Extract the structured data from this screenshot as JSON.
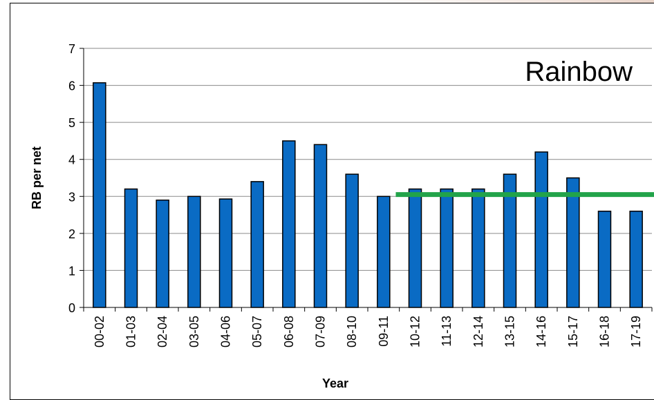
{
  "chart_data": {
    "type": "bar",
    "title": "Rainbow",
    "xlabel": "Year",
    "ylabel": "RB per net",
    "categories": [
      "00-02",
      "01-03",
      "02-04",
      "03-05",
      "04-06",
      "05-07",
      "06-08",
      "07-09",
      "08-10",
      "09-11",
      "10-12",
      "11-13",
      "12-14",
      "13-15",
      "14-16",
      "15-17",
      "16-18",
      "17-19"
    ],
    "values": [
      6.07,
      3.2,
      2.9,
      3.0,
      2.93,
      3.4,
      4.5,
      4.4,
      3.6,
      3.0,
      3.2,
      3.2,
      3.2,
      3.6,
      4.2,
      3.5,
      2.6,
      2.6
    ],
    "ylim": [
      0,
      7
    ],
    "yticks": [
      0,
      1,
      2,
      3,
      4,
      5,
      6,
      7
    ],
    "grid": true,
    "reference_line": {
      "y": 3.05,
      "from_category": "10-12",
      "color": "#22a34a"
    },
    "bar_color": "#0a6bc4"
  }
}
